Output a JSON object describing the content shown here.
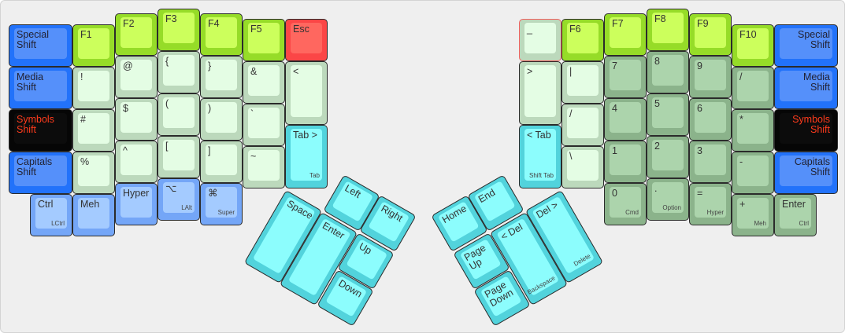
{
  "colors": {
    "blue": "#2272fa",
    "black": "#060606",
    "symbol_text": "#ff3b1c",
    "green": "#ccff5c",
    "light": "#e4fde4",
    "numpad": "#acd4ac",
    "cyan": "#8cfdfd",
    "red": "#ff675f",
    "light_blue": "#a4cbff"
  },
  "left_hand": [
    {
      "label": "Special\nShift",
      "style": "blue"
    },
    {
      "label": "Media\nShift",
      "style": "blue"
    },
    {
      "label": "Symbols\nShift",
      "style": "black"
    },
    {
      "label": "Capitals\nShift",
      "style": "blue"
    },
    {
      "label": "Ctrl",
      "sub": "LCtrl",
      "style": "lblue"
    },
    {
      "label": "F1",
      "style": "green"
    },
    {
      "label": "!",
      "style": "light"
    },
    {
      "label": "#",
      "style": "light"
    },
    {
      "label": "%",
      "style": "light"
    },
    {
      "label": "Meh",
      "style": "lblue"
    },
    {
      "label": "F2",
      "style": "green"
    },
    {
      "label": "@",
      "style": "light"
    },
    {
      "label": "$",
      "style": "light"
    },
    {
      "label": "^",
      "style": "light"
    },
    {
      "label": "Hyper",
      "style": "lblue"
    },
    {
      "label": "F3",
      "style": "green"
    },
    {
      "label": "{",
      "style": "light"
    },
    {
      "label": "(",
      "style": "light"
    },
    {
      "label": "[",
      "style": "light"
    },
    {
      "label": "⌥",
      "sub": "LAlt",
      "style": "lblue"
    },
    {
      "label": "F4",
      "style": "green"
    },
    {
      "label": "}",
      "style": "light"
    },
    {
      "label": ")",
      "style": "light"
    },
    {
      "label": "]",
      "style": "light"
    },
    {
      "label": "⌘",
      "sub": "Super",
      "style": "lblue"
    },
    {
      "label": "F5",
      "style": "green"
    },
    {
      "label": "&",
      "style": "light"
    },
    {
      "label": "`",
      "style": "light"
    },
    {
      "label": "~",
      "style": "light"
    },
    {
      "label": "Esc",
      "style": "red"
    },
    {
      "label": "<",
      "style": "light"
    },
    {
      "label": "Tab >",
      "sub": "Tab",
      "style": "cyan"
    }
  ],
  "right_hand": [
    {
      "label": "_",
      "style": "light",
      "selected": true
    },
    {
      "label": ">",
      "style": "light"
    },
    {
      "label": "< Tab",
      "sub": "Shift Tab",
      "style": "cyan"
    },
    {
      "label": "F6",
      "style": "green"
    },
    {
      "label": "|",
      "style": "light"
    },
    {
      "label": "/",
      "style": "light"
    },
    {
      "label": "\\",
      "style": "light"
    },
    {
      "label": "F7",
      "style": "green"
    },
    {
      "label": "7",
      "style": "num"
    },
    {
      "label": "4",
      "style": "num"
    },
    {
      "label": "1",
      "style": "num"
    },
    {
      "label": "0",
      "sub": "Cmd",
      "style": "num"
    },
    {
      "label": "F8",
      "style": "green"
    },
    {
      "label": "8",
      "style": "num"
    },
    {
      "label": "5",
      "style": "num"
    },
    {
      "label": "2",
      "style": "num"
    },
    {
      "label": ".",
      "sub": "Option",
      "style": "num"
    },
    {
      "label": "F9",
      "style": "green"
    },
    {
      "label": "9",
      "style": "num"
    },
    {
      "label": "6",
      "style": "num"
    },
    {
      "label": "3",
      "style": "num"
    },
    {
      "label": "=",
      "sub": "Hyper",
      "style": "num"
    },
    {
      "label": "F10",
      "style": "green"
    },
    {
      "label": "/",
      "style": "num"
    },
    {
      "label": "*",
      "style": "num"
    },
    {
      "label": "-",
      "style": "num"
    },
    {
      "label": "+",
      "sub": "Meh",
      "style": "num"
    },
    {
      "label": "Special\nShift",
      "style": "blue"
    },
    {
      "label": "Media\nShift",
      "style": "blue"
    },
    {
      "label": "Symbols\nShift",
      "style": "black"
    },
    {
      "label": "Capitals\nShift",
      "style": "blue"
    },
    {
      "label": "Enter",
      "sub": "Ctrl",
      "style": "num"
    }
  ],
  "left_thumb": [
    {
      "label": "Left",
      "style": "cyan"
    },
    {
      "label": "Right",
      "style": "cyan"
    },
    {
      "label": "Up",
      "style": "cyan"
    },
    {
      "label": "Down",
      "style": "cyan"
    },
    {
      "label": "Space",
      "style": "cyan"
    },
    {
      "label": "Enter",
      "style": "cyan"
    }
  ],
  "right_thumb": [
    {
      "label": "End",
      "style": "cyan"
    },
    {
      "label": "Home",
      "style": "cyan"
    },
    {
      "label": "Page\nUp",
      "style": "cyan"
    },
    {
      "label": "Page\nDown",
      "style": "cyan"
    },
    {
      "label": "Del >",
      "sub": "Delete",
      "style": "cyan"
    },
    {
      "label": "< Del",
      "sub": "Backspace",
      "style": "cyan"
    }
  ]
}
